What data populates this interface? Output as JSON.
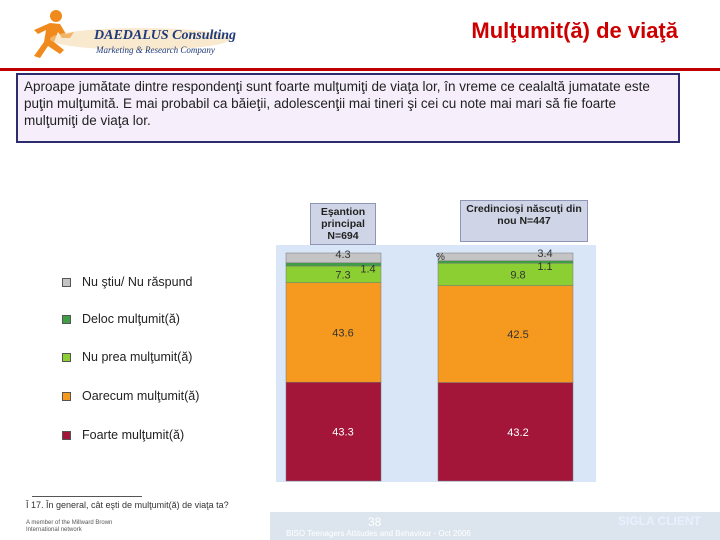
{
  "header": {
    "company_name": "DAEDALUS Consulting",
    "company_sub": "Marketing & Research Company",
    "title": "Mulţumit(ă) de viaţă"
  },
  "summary": "Aproape jumătate dintre respondenţi sunt foarte mulţumiţi de viaţa lor, în vreme ce cealaltă jumatate este puţin mulţumită. E mai probabil ca băieţii, adolescenţii mai tineri şi cei cu note mai mari să fie foarte mulţumiţi de viaţa lor.",
  "chart_data": {
    "type": "bar",
    "stacked": true,
    "unit": "%",
    "categories": [
      "Eşantion principal N=694",
      "Credincioşi născuţi din nou N=447"
    ],
    "series": [
      {
        "name": "Foarte mulţumit(ă)",
        "values": [
          43.3,
          43.2
        ],
        "color": "#a3163a"
      },
      {
        "name": "Oarecum mulţumit(ă)",
        "values": [
          43.6,
          42.5
        ],
        "color": "#f59a1e"
      },
      {
        "name": "Nu prea mulţumit(ă)",
        "values": [
          7.3,
          9.8
        ],
        "color": "#8ccf32"
      },
      {
        "name": "Deloc mulţumit(ă)",
        "values": [
          1.4,
          1.1
        ],
        "color": "#3f9e44"
      },
      {
        "name": "Nu ştiu/ Nu răspund",
        "values": [
          4.3,
          3.4
        ],
        "color": "#c4c4c4"
      }
    ],
    "legend_order": [
      "Nu ştiu/ Nu răspund",
      "Deloc mulţumit(ă)",
      "Nu prea mulţumit(ă)",
      "Oarecum mulţumit(ă)",
      "Foarte mulţumit(ă)"
    ],
    "legend_placement": "left"
  },
  "labels": {
    "col1_header": "Eşantion principal N=694",
    "col2_header": "Credincioşi născuţi din nou N=447",
    "percent_sign": "%"
  },
  "footnote": "Î 17. În general, cât eşti de mulţumit(ă) de viaţa ta?",
  "bottom_logo_text": "A member of the Millward Brown International network",
  "page_number": "38",
  "footer_text": "BISO Teenagers Attitudes and Behaviour - Oct 2006",
  "sigla": "SIGLA CLIENT"
}
